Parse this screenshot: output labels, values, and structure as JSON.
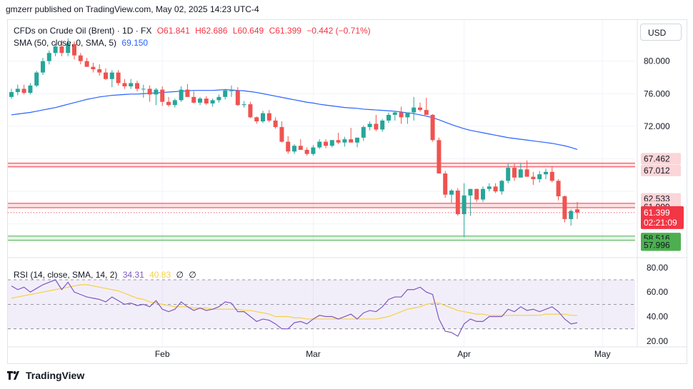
{
  "header": {
    "publish_line": "gmzerr published on TradingView.com, May 02, 2025 14:23 UTC-4"
  },
  "brand": {
    "name": "TradingView",
    "logo_icon": "tradingview-logo-icon"
  },
  "legend": {
    "symbol": "CFDs on Crude Oil (Brent) · 1D · FX",
    "open": "O61.841",
    "high": "H62.686",
    "low": "L60.649",
    "close": "C61.399",
    "change": "−0.442 (−0.71%)",
    "sma_label": "SMA (50, close, 0, SMA, 5)",
    "sma_value": "69.150",
    "rsi_label": "RSI (14, close, SMA, 14, 2)",
    "rsi_value": "34.31",
    "rsi_ma_value": "40.83",
    "rsi_div1": "∅",
    "rsi_div2": "∅"
  },
  "price_axis": {
    "currency_button": "USD",
    "ticks": [
      "80.000",
      "76.000",
      "72.000"
    ],
    "rsi_ticks": [
      "80.00",
      "60.00",
      "40.00",
      "20.00"
    ]
  },
  "time_axis": {
    "labels": [
      "Feb",
      "Mar",
      "Apr",
      "May"
    ]
  },
  "colors": {
    "up": "#26a69a",
    "down": "#ef5350",
    "sma": "#2962ff",
    "rsi": "#7e57c2",
    "rsi_ma": "#f7d046",
    "resistance": "#f23645",
    "support": "#4caf50"
  },
  "chart_data": [
    {
      "type": "candlestick",
      "title": "CFDs on Crude Oil (Brent)",
      "interval": "1D",
      "ylim": [
        57,
        84
      ],
      "x_labels": [
        "Feb",
        "Mar",
        "Apr",
        "May"
      ],
      "candles": [
        [
          75.6,
          76.6,
          75.4,
          76.2
        ],
        [
          76.2,
          77.1,
          75.8,
          76.6
        ],
        [
          76.6,
          77.1,
          75.9,
          76.1
        ],
        [
          76.1,
          77.3,
          75.9,
          77.0
        ],
        [
          77.0,
          78.8,
          76.8,
          78.6
        ],
        [
          78.6,
          80.4,
          78.3,
          80.0
        ],
        [
          80.0,
          81.3,
          79.6,
          81.0
        ],
        [
          81.0,
          82.2,
          80.6,
          81.8
        ],
        [
          81.8,
          82.6,
          80.6,
          81.0
        ],
        [
          81.0,
          82.8,
          80.6,
          82.1
        ],
        [
          82.1,
          82.4,
          80.2,
          80.7
        ],
        [
          80.7,
          81.0,
          79.6,
          80.0
        ],
        [
          80.0,
          80.4,
          79.3,
          79.3
        ],
        [
          79.3,
          79.8,
          78.6,
          79.0
        ],
        [
          79.0,
          79.6,
          78.2,
          78.6
        ],
        [
          78.6,
          79.1,
          77.7,
          77.8
        ],
        [
          77.8,
          78.9,
          76.8,
          78.6
        ],
        [
          78.6,
          78.9,
          77.0,
          77.3
        ],
        [
          77.3,
          77.8,
          76.6,
          76.9
        ],
        [
          76.9,
          77.8,
          76.6,
          77.3
        ],
        [
          77.3,
          77.6,
          76.3,
          76.6
        ],
        [
          76.6,
          77.1,
          75.5,
          76.6
        ],
        [
          76.6,
          77.0,
          75.0,
          75.9
        ],
        [
          75.9,
          76.7,
          74.6,
          76.5
        ],
        [
          76.5,
          76.9,
          74.5,
          75.0
        ],
        [
          75.0,
          75.6,
          74.4,
          74.6
        ],
        [
          74.6,
          75.4,
          74.3,
          75.2
        ],
        [
          75.2,
          76.9,
          75.0,
          76.5
        ],
        [
          76.5,
          77.2,
          75.6,
          75.6
        ],
        [
          75.6,
          76.3,
          74.8,
          74.9
        ],
        [
          74.9,
          75.6,
          74.6,
          75.4
        ],
        [
          75.4,
          75.7,
          74.6,
          74.8
        ],
        [
          74.8,
          75.4,
          74.4,
          75.2
        ],
        [
          75.2,
          75.9,
          74.9,
          75.6
        ],
        [
          75.6,
          76.6,
          75.3,
          76.4
        ],
        [
          76.4,
          77.0,
          75.6,
          76.4
        ],
        [
          76.4,
          76.8,
          74.5,
          74.6
        ],
        [
          74.6,
          75.1,
          74.3,
          74.7
        ],
        [
          74.7,
          75.0,
          73.0,
          73.1
        ],
        [
          73.1,
          73.2,
          72.3,
          72.6
        ],
        [
          72.6,
          73.9,
          72.4,
          73.6
        ],
        [
          73.6,
          74.0,
          72.5,
          72.7
        ],
        [
          72.7,
          73.1,
          71.7,
          71.9
        ],
        [
          71.9,
          72.6,
          70.0,
          70.1
        ],
        [
          70.1,
          70.8,
          68.6,
          68.9
        ],
        [
          68.9,
          69.8,
          68.6,
          69.6
        ],
        [
          69.6,
          70.4,
          69.1,
          69.1
        ],
        [
          69.1,
          69.4,
          68.4,
          68.6
        ],
        [
          68.6,
          69.7,
          68.4,
          69.4
        ],
        [
          69.4,
          70.4,
          69.2,
          70.1
        ],
        [
          70.1,
          70.4,
          69.3,
          69.6
        ],
        [
          69.6,
          70.3,
          69.4,
          70.3
        ],
        [
          70.3,
          71.2,
          69.8,
          70.0
        ],
        [
          70.0,
          70.7,
          69.5,
          70.4
        ],
        [
          70.4,
          71.8,
          70.2,
          70.0
        ],
        [
          70.0,
          70.6,
          69.4,
          70.6
        ],
        [
          70.6,
          72.1,
          70.2,
          71.9
        ],
        [
          71.9,
          72.6,
          71.5,
          72.3
        ],
        [
          72.3,
          73.4,
          71.4,
          71.6
        ],
        [
          71.6,
          72.9,
          71.3,
          72.7
        ],
        [
          72.7,
          73.7,
          72.4,
          73.4
        ],
        [
          73.4,
          73.8,
          72.7,
          73.7
        ],
        [
          73.7,
          74.4,
          72.3,
          73.1
        ],
        [
          73.1,
          73.6,
          72.3,
          73.7
        ],
        [
          73.7,
          75.6,
          72.7,
          74.3
        ],
        [
          74.3,
          74.9,
          73.8,
          74.0
        ],
        [
          74.0,
          75.5,
          73.6,
          73.4
        ],
        [
          73.4,
          73.5,
          70.1,
          70.3
        ],
        [
          70.3,
          70.6,
          66.2,
          66.2
        ],
        [
          66.2,
          66.5,
          63.2,
          63.6
        ],
        [
          63.6,
          64.3,
          62.6,
          64.1
        ],
        [
          64.1,
          64.4,
          61.0,
          61.2
        ],
        [
          61.2,
          65.0,
          58.4,
          63.5
        ],
        [
          63.5,
          64.3,
          61.0,
          64.3
        ],
        [
          64.3,
          64.3,
          62.7,
          63.0
        ],
        [
          63.0,
          64.6,
          62.7,
          64.3
        ],
        [
          64.3,
          65.0,
          64.0,
          64.6
        ],
        [
          64.6,
          65.0,
          63.8,
          64.0
        ],
        [
          64.0,
          65.4,
          63.6,
          65.3
        ],
        [
          65.3,
          67.4,
          65.0,
          66.9
        ],
        [
          66.9,
          67.4,
          65.3,
          65.7
        ],
        [
          65.7,
          67.4,
          65.7,
          66.7
        ],
        [
          66.7,
          67.8,
          65.8,
          65.8
        ],
        [
          65.8,
          66.4,
          64.8,
          65.5
        ],
        [
          65.5,
          66.5,
          65.1,
          66.1
        ],
        [
          66.1,
          66.8,
          65.5,
          66.4
        ],
        [
          66.4,
          67.1,
          65.1,
          65.3
        ],
        [
          65.3,
          65.5,
          62.9,
          63.4
        ],
        [
          63.4,
          63.5,
          60.2,
          60.6
        ],
        [
          60.6,
          61.8,
          59.8,
          61.6
        ],
        [
          61.8,
          62.7,
          60.6,
          61.4
        ]
      ],
      "series": [
        {
          "name": "SMA (50, close, 0, SMA, 5)",
          "values": [
            73.4,
            73.5,
            73.6,
            73.7,
            73.85,
            74.0,
            74.15,
            74.3,
            74.5,
            74.7,
            74.9,
            75.1,
            75.3,
            75.45,
            75.6,
            75.7,
            75.8,
            75.85,
            75.9,
            75.95,
            75.95,
            76.0,
            76.05,
            76.1,
            76.15,
            76.2,
            76.25,
            76.3,
            76.35,
            76.4,
            76.4,
            76.4,
            76.4,
            76.45,
            76.5,
            76.45,
            76.4,
            76.35,
            76.25,
            76.15,
            76.0,
            75.85,
            75.7,
            75.55,
            75.4,
            75.25,
            75.1,
            74.95,
            74.85,
            74.7,
            74.6,
            74.5,
            74.4,
            74.3,
            74.25,
            74.2,
            74.1,
            74.05,
            74.0,
            73.95,
            73.9,
            73.85,
            73.75,
            73.65,
            73.55,
            73.4,
            73.25,
            73.05,
            72.8,
            72.5,
            72.2,
            71.95,
            71.7,
            71.5,
            71.35,
            71.2,
            71.05,
            70.9,
            70.75,
            70.6,
            70.5,
            70.4,
            70.3,
            70.2,
            70.1,
            70.0,
            69.9,
            69.75,
            69.6,
            69.4,
            69.15
          ]
        }
      ],
      "levels": [
        {
          "name": "resistance",
          "values": [
            67.462,
            67.012
          ]
        },
        {
          "name": "resistance",
          "values": [
            62.533,
            61.999
          ]
        },
        {
          "name": "support",
          "values": [
            58.516,
            57.996
          ]
        }
      ],
      "last_price": 61.399,
      "countdown": "02:21:09"
    },
    {
      "type": "line",
      "title": "RSI (14, close, SMA, 14, 2)",
      "ylim": [
        17,
        84
      ],
      "bands": [
        70,
        50,
        30
      ],
      "series": [
        {
          "name": "RSI",
          "values": [
            65,
            62,
            64,
            60,
            63,
            66,
            68,
            70,
            62,
            68,
            60,
            58,
            56,
            55,
            54,
            52,
            56,
            53,
            50,
            51,
            49,
            50,
            48,
            53,
            46,
            44,
            46,
            52,
            48,
            45,
            47,
            45,
            46,
            48,
            52,
            51,
            44,
            44,
            40,
            36,
            38,
            37,
            34,
            30,
            30,
            35,
            36,
            34,
            38,
            41,
            40,
            40,
            38,
            40,
            42,
            38,
            43,
            45,
            44,
            48,
            54,
            56,
            56,
            62,
            62,
            64,
            60,
            58,
            38,
            28,
            27,
            24,
            34,
            38,
            36,
            36,
            40,
            40,
            40,
            46,
            44,
            48,
            45,
            46,
            44,
            46,
            48,
            44,
            38,
            34,
            35
          ]
        },
        {
          "name": "RSI-based MA",
          "values": [
            55,
            56,
            57,
            58,
            59,
            60,
            61,
            62,
            63,
            64,
            65,
            66,
            66,
            65,
            64,
            63,
            62,
            61,
            59,
            57,
            55,
            54,
            52,
            51,
            50,
            49,
            48,
            48,
            48,
            47,
            47,
            47,
            46,
            46,
            46,
            46,
            46,
            45,
            45,
            44,
            43,
            42,
            40,
            40,
            40,
            39,
            39,
            38,
            38,
            38,
            38,
            38,
            38,
            38,
            38,
            38,
            38,
            38,
            38,
            39,
            40,
            42,
            44,
            46,
            47,
            48,
            50,
            51,
            51,
            49,
            47,
            45,
            44,
            43,
            42,
            42,
            41,
            41,
            41,
            41,
            41,
            41,
            41,
            41,
            41,
            42,
            42,
            42,
            42,
            41,
            41
          ]
        }
      ]
    }
  ]
}
